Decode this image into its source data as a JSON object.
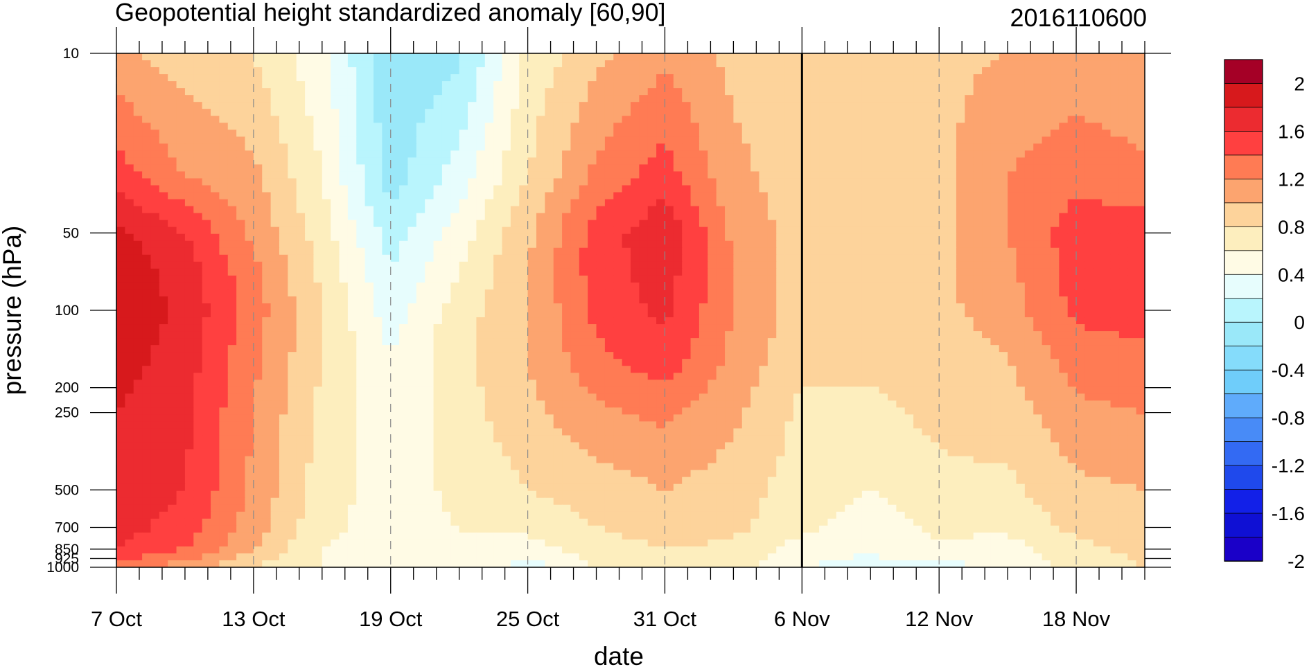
{
  "chart_data": {
    "type": "heatmap",
    "title": "Geopotential height standardized anomaly [60,90]",
    "date_stamp": "2016110600",
    "xlabel": "date",
    "ylabel": "pressure (hPa)",
    "x_ticks": [
      {
        "day": 0,
        "label": "7 Oct"
      },
      {
        "day": 6,
        "label": "13 Oct"
      },
      {
        "day": 12,
        "label": "19 Oct"
      },
      {
        "day": 18,
        "label": "25 Oct"
      },
      {
        "day": 24,
        "label": "31 Oct"
      },
      {
        "day": 30,
        "label": "6 Nov"
      },
      {
        "day": 36,
        "label": "12 Nov"
      },
      {
        "day": 42,
        "label": "18 Nov"
      }
    ],
    "x_range_days": [
      0,
      45
    ],
    "vertical_line_label": "6 Nov",
    "y_ticks": [
      {
        "p": 10,
        "label": "10"
      },
      {
        "p": 50,
        "label": "50"
      },
      {
        "p": 100,
        "label": "100"
      },
      {
        "p": 200,
        "label": "200"
      },
      {
        "p": 250,
        "label": "250"
      },
      {
        "p": 500,
        "label": "500"
      },
      {
        "p": 700,
        "label": "700"
      },
      {
        "p": 850,
        "label": "850"
      },
      {
        "p": 925,
        "label": "925"
      },
      {
        "p": 1000,
        "label": "1000"
      }
    ],
    "y_range_hpa": [
      10,
      1000
    ],
    "y_scale": "log",
    "colorbar": {
      "levels": [
        -2.2,
        -2,
        -1.8,
        -1.6,
        -1.4,
        -1.2,
        -1,
        -0.8,
        -0.6,
        -0.4,
        -0.2,
        0,
        0.2,
        0.4,
        0.6,
        0.8,
        1,
        1.2,
        1.4,
        1.6,
        1.8,
        2,
        2.2
      ],
      "tick_labels": [
        "2",
        "1.6",
        "1.2",
        "0.8",
        "0.4",
        "0",
        "-0.4",
        "-0.8",
        "-1.2",
        "-1.6",
        "-2"
      ],
      "colors_top_to_bottom": [
        "#a50026",
        "#d7191c",
        "#ec2b30",
        "#ff4040",
        "#ff7b54",
        "#fca46f",
        "#fdd39b",
        "#fdeebe",
        "#fffbe5",
        "#e7fdfd",
        "#b9f5fd",
        "#9ae8f9",
        "#85dcfb",
        "#6fcdfa",
        "#5fabfb",
        "#488bf7",
        "#336af3",
        "#1f49ec",
        "#1220e8",
        "#0f10d4",
        "#1a00c8"
      ]
    },
    "days": [
      0,
      3,
      6,
      9,
      12,
      15,
      18,
      21,
      24,
      27,
      30,
      33,
      36,
      39,
      42,
      45
    ],
    "levels_hpa": [
      1000,
      850,
      700,
      500,
      250,
      150,
      100,
      70,
      50,
      30,
      10
    ],
    "values": [
      [
        1.1,
        0.9,
        0.6,
        0.4,
        0.3,
        0.35,
        0.1,
        0.45,
        0.55,
        0.5,
        0.2,
        0.1,
        0.15,
        0.2,
        0.5,
        0.6
      ],
      [
        1.4,
        1.2,
        0.8,
        0.4,
        0.3,
        0.4,
        0.3,
        0.5,
        0.6,
        0.55,
        0.3,
        0.25,
        0.35,
        0.3,
        0.55,
        0.65
      ],
      [
        1.5,
        1.3,
        0.9,
        0.45,
        0.3,
        0.4,
        0.45,
        0.6,
        0.7,
        0.65,
        0.45,
        0.3,
        0.45,
        0.45,
        0.65,
        0.7
      ],
      [
        1.55,
        1.4,
        0.95,
        0.5,
        0.3,
        0.45,
        0.6,
        0.7,
        0.8,
        0.7,
        0.5,
        0.4,
        0.55,
        0.55,
        0.75,
        0.8
      ],
      [
        1.6,
        1.45,
        1.0,
        0.55,
        0.25,
        0.5,
        0.75,
        0.95,
        1.05,
        0.85,
        0.55,
        0.55,
        0.65,
        0.7,
        0.95,
        1.0
      ],
      [
        1.7,
        1.5,
        1.05,
        0.6,
        0.2,
        0.55,
        0.8,
        1.15,
        1.35,
        0.95,
        0.65,
        0.65,
        0.7,
        0.8,
        1.1,
        1.15
      ],
      [
        1.75,
        1.55,
        1.1,
        0.6,
        0.1,
        0.5,
        0.8,
        1.25,
        1.45,
        1.0,
        0.7,
        0.7,
        0.75,
        0.9,
        1.25,
        1.3
      ],
      [
        1.75,
        1.5,
        1.05,
        0.55,
        0.0,
        0.4,
        0.8,
        1.3,
        1.5,
        1.0,
        0.7,
        0.7,
        0.75,
        0.95,
        1.3,
        1.35
      ],
      [
        1.65,
        1.4,
        0.95,
        0.5,
        -0.1,
        0.3,
        0.75,
        1.3,
        1.55,
        0.95,
        0.7,
        0.7,
        0.75,
        1.0,
        1.3,
        1.3
      ],
      [
        1.3,
        1.0,
        0.85,
        0.4,
        -0.3,
        0.1,
        0.6,
        1.05,
        1.3,
        0.85,
        0.7,
        0.7,
        0.75,
        1.0,
        1.15,
        1.05
      ],
      [
        0.85,
        0.7,
        0.6,
        0.25,
        -0.35,
        -0.25,
        0.45,
        0.75,
        0.95,
        0.75,
        0.65,
        0.7,
        0.75,
        0.8,
        0.85,
        0.8
      ]
    ]
  }
}
